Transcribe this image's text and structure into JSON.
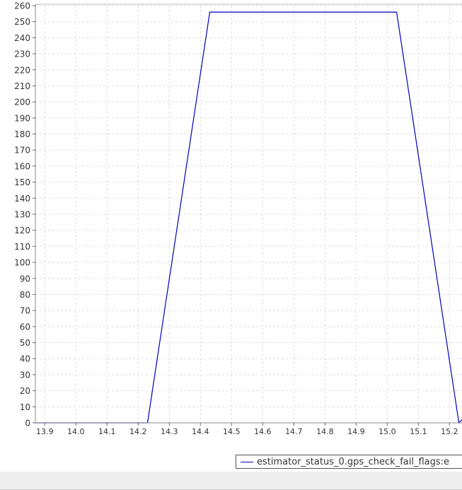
{
  "chart_data": {
    "type": "line",
    "title": "",
    "xlabel": "",
    "ylabel": "",
    "xlim": [
      13.87,
      15.24
    ],
    "ylim": [
      0,
      260
    ],
    "x_ticks": [
      "13.9",
      "14.0",
      "14.1",
      "14.2",
      "14.3",
      "14.4",
      "14.5",
      "14.6",
      "14.7",
      "14.8",
      "14.9",
      "15.0",
      "15.1",
      "15.2"
    ],
    "y_ticks": [
      "0",
      "10",
      "20",
      "30",
      "40",
      "50",
      "60",
      "70",
      "80",
      "90",
      "100",
      "110",
      "120",
      "130",
      "140",
      "150",
      "160",
      "170",
      "180",
      "190",
      "200",
      "210",
      "220",
      "230",
      "240",
      "250",
      "260"
    ],
    "grid": true,
    "legend_position": "bottom-right",
    "series": [
      {
        "name": "estimator_status_0.gps_check_fail_flags:e",
        "color": "#0000c0",
        "x": [
          13.87,
          14.23,
          14.43,
          15.03,
          15.23,
          15.24
        ],
        "y": [
          0,
          0,
          256,
          256,
          0,
          2
        ]
      }
    ]
  }
}
